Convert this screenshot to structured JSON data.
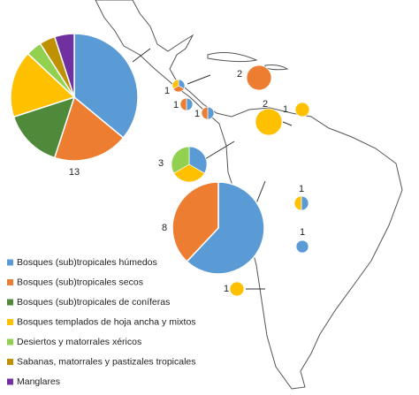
{
  "legend": {
    "items": [
      {
        "label": "Bosques (sub)tropicales húmedos",
        "color": "#5b9bd5"
      },
      {
        "label": "Bosques (sub)tropicales secos",
        "color": "#ed7d31"
      },
      {
        "label": "Bosques (sub)tropicales de coníferas",
        "color": "#4e8a3a"
      },
      {
        "label": "Bosques templados de hoja ancha y mixtos",
        "color": "#ffc000"
      },
      {
        "label": "Desiertos y matorrales xéricos",
        "color": "#92d050"
      },
      {
        "label": "Sabanas, matorrales y pastizales tropicales",
        "color": "#bf9000"
      },
      {
        "label": "Manglares",
        "color": "#7030a0"
      }
    ]
  },
  "pies": [
    {
      "label": "13",
      "values": [
        36,
        19,
        15,
        17,
        4,
        4,
        5
      ]
    },
    {
      "label": "2",
      "values": [
        0,
        100,
        0,
        0,
        0,
        0,
        0
      ]
    },
    {
      "label": "1",
      "values": [
        33,
        33,
        0,
        33,
        0,
        0,
        0
      ]
    },
    {
      "label": "1",
      "values": [
        50,
        50,
        0,
        0,
        0,
        0,
        0
      ]
    },
    {
      "label": "1",
      "values": [
        50,
        50,
        0,
        0,
        0,
        0,
        0
      ]
    },
    {
      "label": "2",
      "values": [
        0,
        0,
        0,
        100,
        0,
        0,
        0
      ]
    },
    {
      "label": "1",
      "values": [
        0,
        0,
        0,
        100,
        0,
        0,
        0
      ]
    },
    {
      "label": "3",
      "values": [
        33,
        0,
        0,
        33,
        33,
        0,
        0
      ]
    },
    {
      "label": "8",
      "values": [
        62,
        38,
        0,
        0,
        0,
        0,
        0
      ]
    },
    {
      "label": "1",
      "values": [
        50,
        0,
        0,
        50,
        0,
        0,
        0
      ]
    },
    {
      "label": "1",
      "values": [
        100,
        0,
        0,
        0,
        0,
        0,
        0
      ]
    },
    {
      "label": "1",
      "values": [
        0,
        0,
        0,
        100,
        0,
        0,
        0
      ]
    }
  ]
}
